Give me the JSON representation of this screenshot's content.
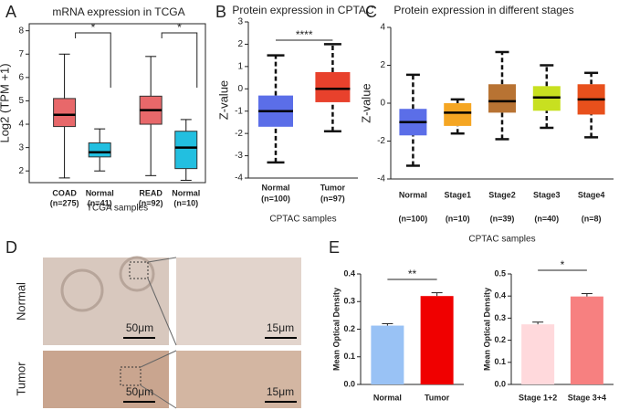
{
  "panel_labels": [
    "A",
    "B",
    "C",
    "D",
    "E"
  ],
  "histology": {
    "rows": [
      "Normal",
      "Tumor"
    ],
    "scale_bars": [
      "50μm",
      "15μm"
    ]
  },
  "chart_data": [
    {
      "type": "box",
      "title": "mRNA expression in TCGA",
      "y_label": "Log2 (TPM +1)",
      "x_label": "TCGA samples",
      "categories": [
        "COAD",
        "Normal",
        "READ",
        "Normal"
      ],
      "category_notes": [
        "(n=275)",
        "(n=41)",
        "(n=92)",
        "(n=10)"
      ],
      "stats": [
        [
          1.7,
          3.9,
          4.4,
          5.1,
          7.0
        ],
        [
          2.0,
          2.6,
          2.8,
          3.2,
          3.8
        ],
        [
          1.8,
          4.0,
          4.6,
          5.2,
          6.9
        ],
        [
          1.6,
          2.1,
          3.0,
          3.7,
          4.2
        ]
      ],
      "colors": [
        "#e8686a",
        "#22bfe0",
        "#e8686a",
        "#22bfe0"
      ],
      "ylim": [
        1.5,
        8.3
      ],
      "yticks": [
        2,
        3,
        4,
        5,
        6,
        7,
        8
      ],
      "annotations": [
        "*",
        "*"
      ]
    },
    {
      "type": "box",
      "title": "Protein expression in CPTAC",
      "y_label": "Z-value",
      "x_label": "CPTAC samples",
      "categories": [
        "Normal",
        "Tumor"
      ],
      "category_notes": [
        "(n=100)",
        "(n=97)"
      ],
      "stats": [
        [
          -3.3,
          -1.7,
          -1.0,
          -0.3,
          1.5
        ],
        [
          -1.9,
          -0.6,
          0.0,
          0.75,
          2.0
        ]
      ],
      "colors": [
        "#5b6ee8",
        "#e8412c"
      ],
      "ylim": [
        -4,
        3
      ],
      "yticks": [
        -4,
        -3,
        -2,
        -1,
        0,
        1,
        2,
        3
      ],
      "annotations": [
        "****"
      ]
    },
    {
      "type": "box",
      "title": "Protein expression in different stages",
      "y_label": "Z-value",
      "x_label": "CPTAC samples",
      "categories": [
        "Normal",
        "Stage1",
        "Stage2",
        "Stage3",
        "Stage4"
      ],
      "category_notes": [
        "(n=100)",
        "(n=10)",
        "(n=39)",
        "(n=40)",
        "(n=8)"
      ],
      "stats": [
        [
          -3.3,
          -1.7,
          -1.0,
          -0.3,
          1.5
        ],
        [
          -1.6,
          -1.2,
          -0.5,
          0.0,
          0.2
        ],
        [
          -1.9,
          -0.5,
          0.1,
          1.0,
          2.7
        ],
        [
          -1.3,
          -0.4,
          0.3,
          0.9,
          2.0
        ],
        [
          -1.8,
          -0.6,
          0.2,
          1.0,
          1.6
        ]
      ],
      "colors": [
        "#5b6ee8",
        "#f5a623",
        "#b87333",
        "#c8e020",
        "#e8501c"
      ],
      "ylim": [
        -4,
        4
      ],
      "yticks": [
        -4,
        -2,
        0,
        2,
        4
      ],
      "annotations": []
    },
    {
      "type": "bar",
      "y_label": "Mean Optical Density",
      "categories": [
        "Normal",
        "Tumor"
      ],
      "values": [
        0.213,
        0.32
      ],
      "errors": [
        0.007,
        0.012
      ],
      "colors": [
        "#99c2f5",
        "#f00000"
      ],
      "ylim": [
        0,
        0.4
      ],
      "yticks": [
        {
          "value": 0,
          "label": "0.0"
        },
        0.1,
        0.2,
        0.3,
        0.4
      ],
      "annotations": [
        "**"
      ]
    },
    {
      "type": "bar",
      "y_label": "Mean Optical Density",
      "categories": [
        "Stage 1+2",
        "Stage 3+4"
      ],
      "values": [
        0.272,
        0.398
      ],
      "errors": [
        0.01,
        0.013
      ],
      "colors": [
        "#ffd9dc",
        "#f78080"
      ],
      "ylim": [
        0,
        0.5
      ],
      "yticks": [
        {
          "value": 0,
          "label": "0.0"
        },
        0.1,
        0.2,
        0.3,
        0.4,
        0.5
      ],
      "annotations": [
        "*"
      ]
    }
  ]
}
